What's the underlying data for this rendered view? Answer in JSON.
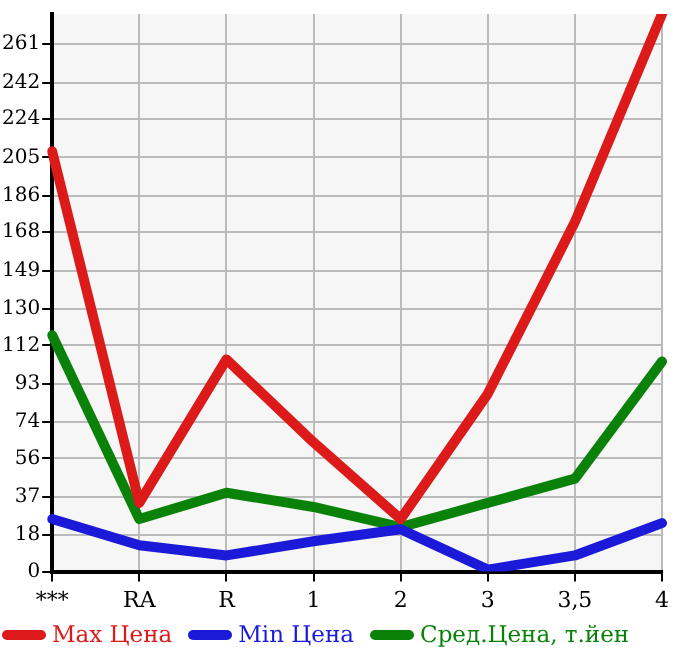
{
  "chart_data": {
    "type": "line",
    "categories": [
      "***",
      "RA",
      "R",
      "1",
      "2",
      "3",
      "3,5",
      "4"
    ],
    "series": [
      {
        "name": "Max Цена",
        "color": "#dd1a1a",
        "values": [
          208,
          34,
          105,
          64,
          26,
          88,
          173,
          276
        ]
      },
      {
        "name": "Min Цена",
        "color": "#1a1ad8",
        "values": [
          26,
          13,
          8,
          15,
          21,
          1,
          8,
          24
        ]
      },
      {
        "name": "Сред.Цена, т.йен",
        "color": "#0a820a",
        "values": [
          117,
          26,
          39,
          32,
          22,
          34,
          46,
          104
        ]
      }
    ],
    "ylim": [
      0,
      276
    ],
    "yticks": [
      0,
      18,
      37,
      56,
      74,
      93,
      112,
      130,
      149,
      168,
      186,
      205,
      224,
      242,
      261
    ],
    "grid": true,
    "legend": "bottom",
    "marker": "none",
    "line_style": "solid"
  }
}
